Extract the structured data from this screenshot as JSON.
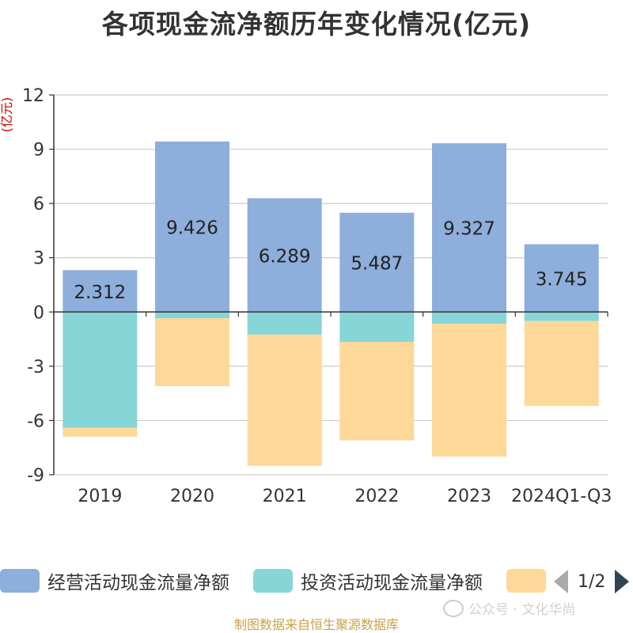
{
  "title": "各项现金流净额历年变化情况(亿元)",
  "footer": "制图数据来自恒生聚源数据库",
  "watermark": "公众号 · 文化华尚",
  "pager": {
    "label": "1/2"
  },
  "chart_data": {
    "type": "bar",
    "stacked": true,
    "title": "各项现金流净额历年变化情况(亿元)",
    "ylabel": "(亿元)",
    "ylim": [
      -9,
      12
    ],
    "yticks": [
      12,
      9,
      6,
      3,
      0,
      -3,
      -6,
      -9
    ],
    "grid": true,
    "legend_position": "bottom",
    "categories": [
      "2019",
      "2020",
      "2021",
      "2022",
      "2023",
      "2024Q1-Q3"
    ],
    "series": [
      {
        "name": "经营活动现金流量净额",
        "color": "#8eaedb",
        "values": [
          2.312,
          9.426,
          6.289,
          5.487,
          9.327,
          3.745
        ],
        "labels": [
          "2.312",
          "9.426",
          "6.289",
          "5.487",
          "9.327",
          "3.745"
        ]
      },
      {
        "name": "投资活动现金流量净额",
        "color": "#87d5d6",
        "values": [
          -6.4,
          -0.35,
          -1.25,
          -1.65,
          -0.65,
          -0.5
        ]
      },
      {
        "name": "",
        "color": "#fdd899",
        "values": [
          -0.5,
          -3.75,
          -7.25,
          -5.45,
          -7.35,
          -4.7
        ]
      }
    ]
  }
}
